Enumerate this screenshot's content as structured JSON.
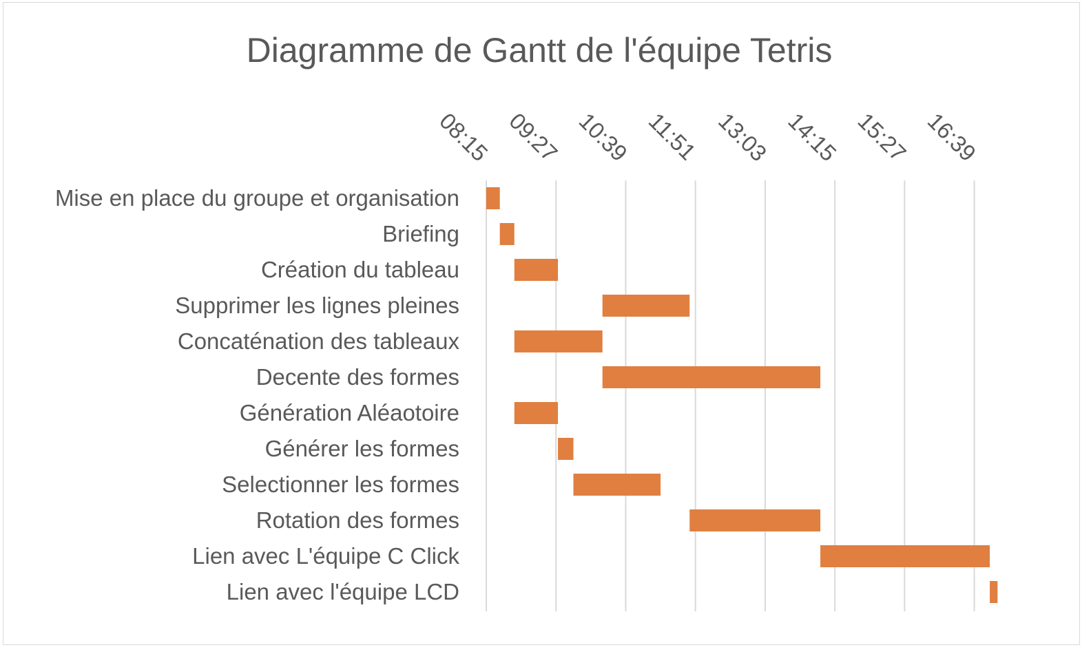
{
  "chart_data": {
    "type": "bar",
    "orientation": "horizontal",
    "subtype": "gantt",
    "title": "Diagramme de Gantt de l'équipe Tetris",
    "x_axis": {
      "type": "time",
      "position": "top",
      "range": [
        "08:15",
        "17:17"
      ],
      "tick_labels": [
        "08:15",
        "09:27",
        "10:39",
        "11:51",
        "13:03",
        "14:15",
        "15:27",
        "16:39"
      ],
      "tick_label_rotation_deg": 45,
      "grid": true
    },
    "categories": [
      "Mise en place du groupe et organisation",
      "Briefing",
      "Création du tableau",
      "Supprimer les lignes pleines",
      "Concaténation des tableaux",
      "Decente des formes",
      "Génération Aléaotoire",
      "Générer les formes",
      "Selectionner les formes",
      "Rotation des formes",
      "Lien avec L'équipe C Click",
      "Lien avec l'équipe LCD"
    ],
    "series": [
      {
        "color": "#E07F40",
        "start": [
          "08:15",
          "08:29",
          "08:44",
          "10:15",
          "08:44",
          "10:15",
          "08:44",
          "09:29",
          "09:45",
          "11:45",
          "14:00",
          "16:55"
        ],
        "end": [
          "08:29",
          "08:44",
          "09:29",
          "11:45",
          "10:15",
          "14:00",
          "09:29",
          "09:45",
          "11:15",
          "14:00",
          "16:55",
          "17:03"
        ]
      }
    ],
    "legend": "none"
  }
}
